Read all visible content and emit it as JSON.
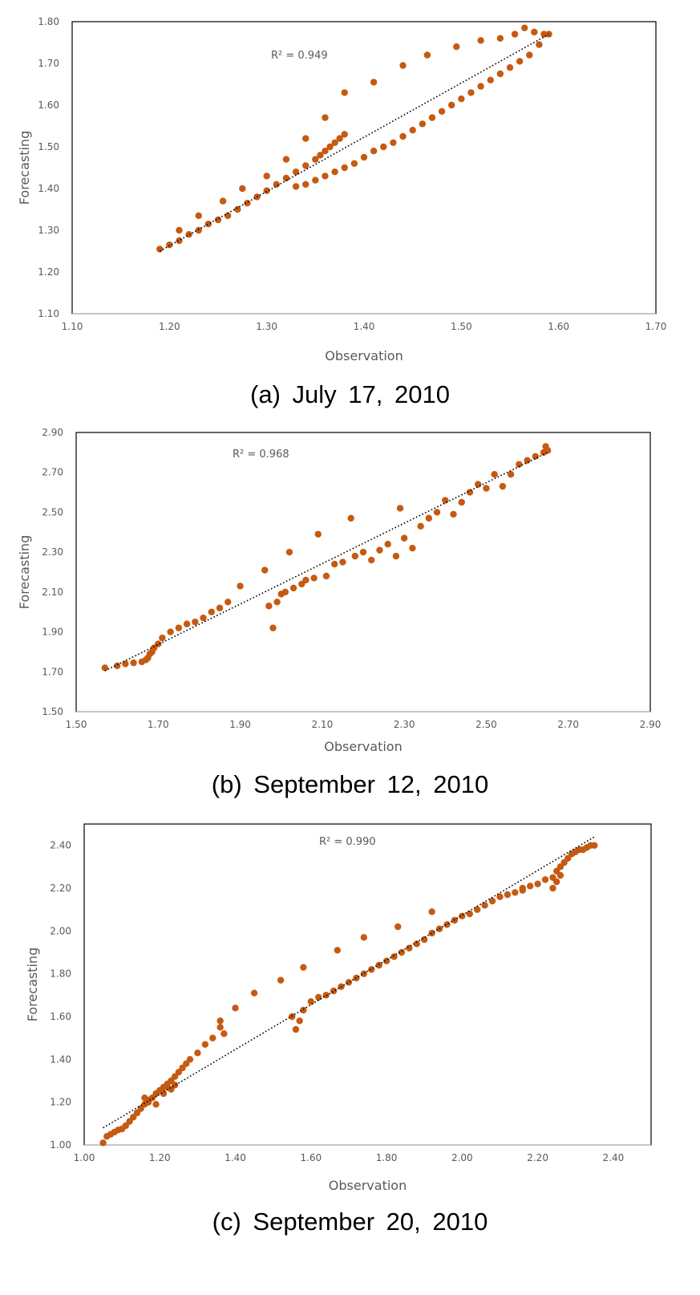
{
  "chart_data": [
    {
      "type": "scatter",
      "caption": "(a) July 17, 2010",
      "xlabel": "Observation",
      "ylabel": "Forecasting",
      "annotation": "R² = 0.949",
      "xlim": [
        1.1,
        1.7
      ],
      "ylim": [
        1.1,
        1.8
      ],
      "xticks": [
        "1.10",
        "1.20",
        "1.30",
        "1.40",
        "1.50",
        "1.60",
        "1.70"
      ],
      "yticks": [
        "1.10",
        "1.20",
        "1.30",
        "1.40",
        "1.50",
        "1.60",
        "1.70",
        "1.80"
      ],
      "trendline": {
        "x": [
          1.19,
          1.59
        ],
        "y": [
          1.25,
          1.77
        ]
      },
      "colors": {
        "points": "#C55A11",
        "trend": "#000000",
        "frame": "#000000",
        "grid": "none"
      },
      "x": [
        1.19,
        1.2,
        1.21,
        1.22,
        1.23,
        1.24,
        1.25,
        1.26,
        1.27,
        1.28,
        1.29,
        1.3,
        1.31,
        1.32,
        1.33,
        1.34,
        1.35,
        1.355,
        1.36,
        1.365,
        1.37,
        1.375,
        1.38,
        1.33,
        1.34,
        1.35,
        1.36,
        1.37,
        1.38,
        1.39,
        1.4,
        1.41,
        1.42,
        1.43,
        1.44,
        1.45,
        1.46,
        1.47,
        1.48,
        1.49,
        1.5,
        1.51,
        1.52,
        1.53,
        1.54,
        1.55,
        1.56,
        1.57,
        1.58,
        1.59,
        1.21,
        1.23,
        1.255,
        1.275,
        1.3,
        1.32,
        1.34,
        1.36,
        1.38,
        1.41,
        1.44,
        1.465,
        1.495,
        1.52,
        1.54,
        1.555,
        1.565,
        1.575,
        1.585
      ],
      "y": [
        1.255,
        1.265,
        1.275,
        1.29,
        1.3,
        1.315,
        1.325,
        1.335,
        1.35,
        1.365,
        1.38,
        1.395,
        1.41,
        1.425,
        1.44,
        1.455,
        1.47,
        1.48,
        1.49,
        1.5,
        1.51,
        1.52,
        1.53,
        1.405,
        1.41,
        1.42,
        1.43,
        1.44,
        1.45,
        1.46,
        1.475,
        1.49,
        1.5,
        1.51,
        1.525,
        1.54,
        1.555,
        1.57,
        1.585,
        1.6,
        1.615,
        1.63,
        1.645,
        1.66,
        1.675,
        1.69,
        1.705,
        1.72,
        1.745,
        1.77,
        1.3,
        1.335,
        1.37,
        1.4,
        1.43,
        1.47,
        1.52,
        1.57,
        1.63,
        1.655,
        1.695,
        1.72,
        1.74,
        1.755,
        1.76,
        1.77,
        1.785,
        1.775,
        1.77
      ]
    },
    {
      "type": "scatter",
      "caption": "(b) September 12, 2010",
      "xlabel": "Observation",
      "ylabel": "Forecasting",
      "annotation": "R² = 0.968",
      "xlim": [
        1.5,
        2.9
      ],
      "ylim": [
        1.5,
        2.9
      ],
      "xticks": [
        "1.50",
        "1.70",
        "1.90",
        "2.10",
        "2.30",
        "2.50",
        "2.70",
        "2.90"
      ],
      "yticks": [
        "1.50",
        "1.70",
        "1.90",
        "2.10",
        "2.30",
        "2.50",
        "2.70",
        "2.90"
      ],
      "trendline": {
        "x": [
          1.57,
          2.65
        ],
        "y": [
          1.705,
          2.8
        ]
      },
      "colors": {
        "points": "#C55A11",
        "trend": "#000000",
        "frame": "#000000",
        "grid": "none"
      },
      "x": [
        1.57,
        1.6,
        1.62,
        1.64,
        1.66,
        1.67,
        1.675,
        1.68,
        1.685,
        1.69,
        1.7,
        1.71,
        1.73,
        1.75,
        1.77,
        1.79,
        1.81,
        1.83,
        1.85,
        1.87,
        1.9,
        1.96,
        1.97,
        1.98,
        1.99,
        2.0,
        2.01,
        2.02,
        2.03,
        2.05,
        2.06,
        2.08,
        2.09,
        2.11,
        2.13,
        2.15,
        2.17,
        2.18,
        2.2,
        2.22,
        2.24,
        2.26,
        2.28,
        2.29,
        2.3,
        2.32,
        2.34,
        2.36,
        2.38,
        2.4,
        2.42,
        2.44,
        2.46,
        2.48,
        2.5,
        2.52,
        2.54,
        2.56,
        2.58,
        2.6,
        2.62,
        2.64,
        2.645,
        2.65
      ],
      "y": [
        1.72,
        1.73,
        1.74,
        1.745,
        1.75,
        1.76,
        1.77,
        1.79,
        1.8,
        1.82,
        1.84,
        1.87,
        1.9,
        1.92,
        1.94,
        1.95,
        1.97,
        2.0,
        2.02,
        2.05,
        2.13,
        2.21,
        2.03,
        1.92,
        2.05,
        2.09,
        2.1,
        2.3,
        2.12,
        2.14,
        2.16,
        2.17,
        2.39,
        2.18,
        2.24,
        2.25,
        2.47,
        2.28,
        2.3,
        2.26,
        2.31,
        2.34,
        2.28,
        2.52,
        2.37,
        2.32,
        2.43,
        2.47,
        2.5,
        2.56,
        2.49,
        2.55,
        2.6,
        2.64,
        2.62,
        2.69,
        2.63,
        2.69,
        2.74,
        2.76,
        2.78,
        2.8,
        2.83,
        2.81
      ]
    },
    {
      "type": "scatter",
      "caption": "(c) September 20, 2010",
      "xlabel": "Observation",
      "ylabel": "Forecasting",
      "annotation": "R² = 0.990",
      "xlim": [
        1.0,
        2.5
      ],
      "ylim": [
        1.0,
        2.5
      ],
      "xticks": [
        "1.00",
        "1.20",
        "1.40",
        "1.60",
        "1.80",
        "2.00",
        "2.20",
        "2.40"
      ],
      "yticks": [
        "1.00",
        "1.20",
        "1.40",
        "1.60",
        "1.80",
        "2.00",
        "2.20",
        "2.40"
      ],
      "trendline": {
        "x": [
          1.05,
          2.35
        ],
        "y": [
          1.08,
          2.44
        ]
      },
      "colors": {
        "points": "#C55A11",
        "trend": "#000000",
        "frame": "#000000",
        "grid": "none"
      },
      "x": [
        1.05,
        1.06,
        1.07,
        1.08,
        1.09,
        1.1,
        1.11,
        1.12,
        1.13,
        1.14,
        1.15,
        1.16,
        1.17,
        1.18,
        1.19,
        1.2,
        1.21,
        1.22,
        1.23,
        1.24,
        1.25,
        1.26,
        1.27,
        1.28,
        1.3,
        1.32,
        1.36,
        1.4,
        1.45,
        1.52,
        1.58,
        1.67,
        1.74,
        1.83,
        1.92,
        1.55,
        1.56,
        1.57,
        1.58,
        1.6,
        1.62,
        1.64,
        1.66,
        1.68,
        1.7,
        1.72,
        1.74,
        1.76,
        1.78,
        1.8,
        1.82,
        1.84,
        1.86,
        1.88,
        1.9,
        1.92,
        1.94,
        1.96,
        1.98,
        2.0,
        2.02,
        2.04,
        2.06,
        2.08,
        2.1,
        2.12,
        2.14,
        2.16,
        2.18,
        2.2,
        2.22,
        2.24,
        2.25,
        2.26,
        2.27,
        2.28,
        2.29,
        2.3,
        2.31,
        2.32,
        2.33,
        2.34,
        2.35,
        1.17,
        1.19,
        1.21,
        1.23,
        1.16,
        1.22,
        1.24,
        1.34,
        1.36,
        1.37,
        2.16,
        2.24,
        2.25,
        2.26
      ],
      "y": [
        1.01,
        1.04,
        1.05,
        1.06,
        1.07,
        1.075,
        1.09,
        1.11,
        1.13,
        1.15,
        1.17,
        1.19,
        1.21,
        1.22,
        1.24,
        1.255,
        1.27,
        1.285,
        1.3,
        1.32,
        1.34,
        1.36,
        1.38,
        1.4,
        1.43,
        1.47,
        1.58,
        1.64,
        1.71,
        1.77,
        1.83,
        1.91,
        1.97,
        2.02,
        2.09,
        1.6,
        1.54,
        1.58,
        1.63,
        1.67,
        1.69,
        1.7,
        1.72,
        1.74,
        1.76,
        1.78,
        1.8,
        1.82,
        1.84,
        1.86,
        1.88,
        1.9,
        1.92,
        1.94,
        1.96,
        1.99,
        2.01,
        2.03,
        2.05,
        2.07,
        2.08,
        2.1,
        2.12,
        2.14,
        2.16,
        2.17,
        2.18,
        2.2,
        2.21,
        2.22,
        2.24,
        2.25,
        2.28,
        2.3,
        2.32,
        2.34,
        2.36,
        2.37,
        2.38,
        2.38,
        2.39,
        2.4,
        2.4,
        1.2,
        1.19,
        1.24,
        1.26,
        1.22,
        1.27,
        1.28,
        1.5,
        1.55,
        1.52,
        2.19,
        2.2,
        2.23,
        2.26
      ]
    }
  ]
}
